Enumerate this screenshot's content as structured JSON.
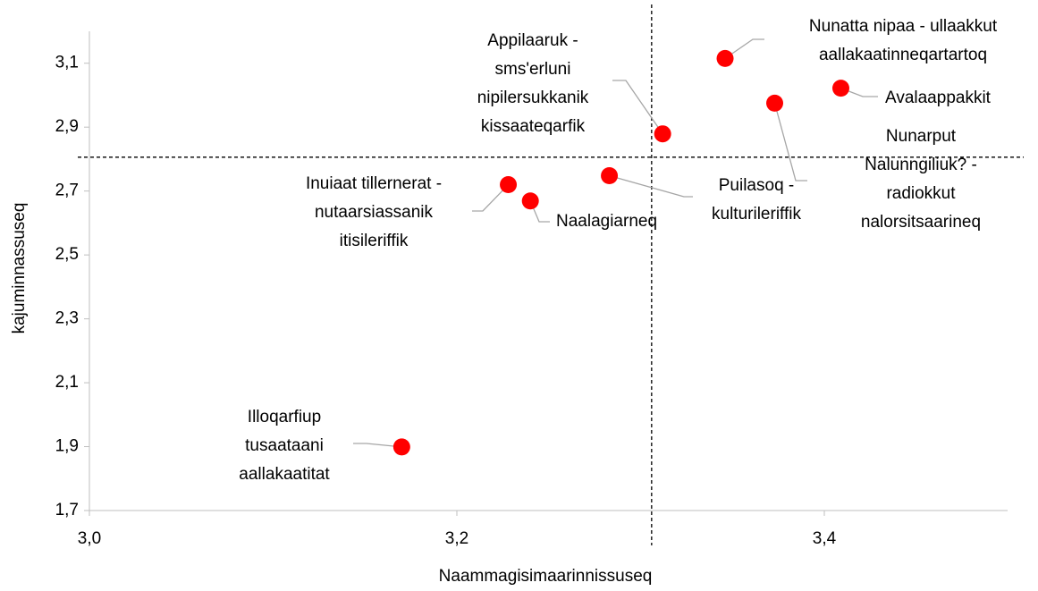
{
  "chart_data": {
    "type": "scatter",
    "x_label": "Naammagisimaarinnissuseq",
    "y_label": "kajuminnassuseq",
    "color": "#ff0000",
    "x": [
      3.346,
      3.409,
      3.373,
      3.312,
      3.283,
      3.228,
      3.24,
      3.17
    ],
    "values": [
      3.115,
      3.022,
      2.975,
      2.879,
      2.748,
      2.72,
      2.669,
      1.899
    ],
    "point_labels": [
      [
        "Nunatta nipaa - ullaakkut",
        "aallakaatinneqartartoq"
      ],
      [
        "Avalaappakkit"
      ],
      [
        "Nunarput",
        "Nalunngiliuk? -",
        "radiokkut",
        "nalorsitsaarineq"
      ],
      [
        "Appilaaruk -",
        "sms'erluni",
        "nipilersukkanik",
        "kissaateqarfik"
      ],
      [
        "Puilasoq -",
        "kulturileriffik"
      ],
      [
        "Inuiaat tillernerat -",
        "nutaarsiassanik",
        "itisileriffik"
      ],
      [
        "Naalagiarneq"
      ],
      [
        "Illoqarfiup",
        "tusaataani",
        "aallakaatitat"
      ]
    ],
    "reference_x": 3.306,
    "reference_y": 2.806,
    "xlim": [
      3.0,
      3.5
    ],
    "ylim": [
      1.7,
      3.2
    ],
    "xticks": [
      {
        "value": 3.0,
        "label": "3,0"
      },
      {
        "value": 3.2,
        "label": "3,2"
      },
      {
        "value": 3.4,
        "label": "3,4"
      }
    ],
    "yticks": [
      {
        "value": 1.7,
        "label": "1,7"
      },
      {
        "value": 1.9,
        "label": "1,9"
      },
      {
        "value": 2.1,
        "label": "2,1"
      },
      {
        "value": 2.3,
        "label": "2,3"
      },
      {
        "value": 2.5,
        "label": "2,5"
      },
      {
        "value": 2.7,
        "label": "2,7"
      },
      {
        "value": 2.9,
        "label": "2,9"
      },
      {
        "value": 3.1,
        "label": "3,1"
      }
    ]
  }
}
